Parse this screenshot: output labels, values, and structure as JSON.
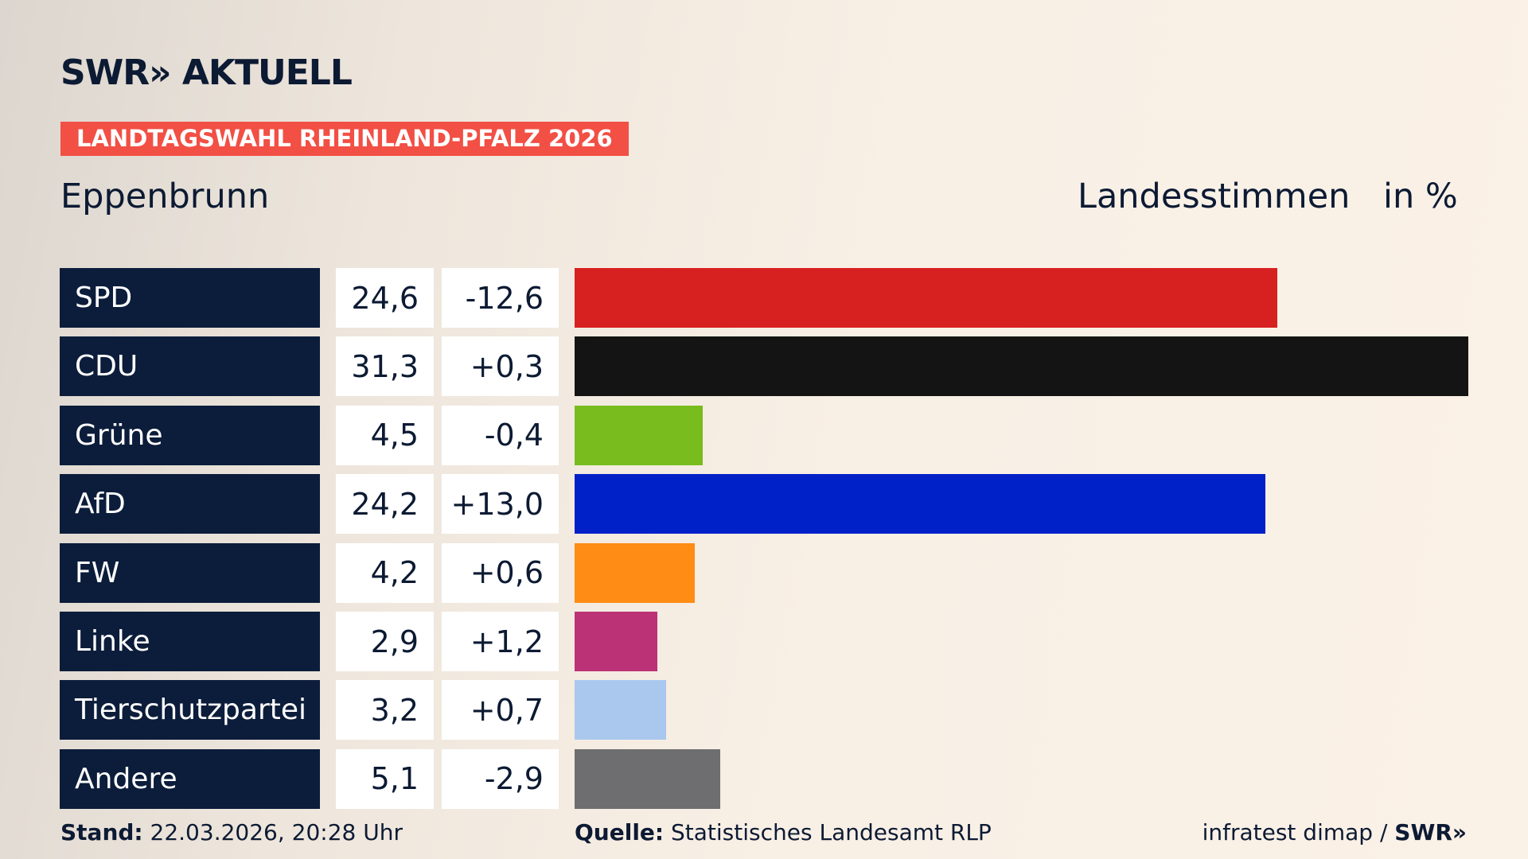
{
  "header": {
    "brand": "SWR» AKTUELL",
    "banner": "LANDTAGSWAHL RHEINLAND-PFALZ 2026",
    "location": "Eppenbrunn",
    "measure": "Landesstimmen",
    "unit": "in %"
  },
  "chart_data": {
    "type": "bar",
    "categories": [
      "SPD",
      "CDU",
      "Grüne",
      "AfD",
      "FW",
      "Linke",
      "Tierschutzpartei",
      "Andere"
    ],
    "values": [
      24.6,
      31.3,
      4.5,
      24.2,
      4.2,
      2.9,
      3.2,
      5.1
    ],
    "value_labels": [
      "24,6",
      "31,3",
      "4,5",
      "24,2",
      "4,2",
      "2,9",
      "3,2",
      "5,1"
    ],
    "changes": [
      "-12,6",
      "+0,3",
      "-0,4",
      "+13,0",
      "+0,6",
      "+1,2",
      "+0,7",
      "-2,9"
    ],
    "colors": [
      "#d72020",
      "#141414",
      "#78bc1e",
      "#0020c8",
      "#ff8c14",
      "#bb3276",
      "#aac8ee",
      "#6e6e70"
    ]
  },
  "footer": {
    "stand_label": "Stand:",
    "stand": "22.03.2026, 20:28 Uhr",
    "source_label": "Quelle:",
    "source": "Statistisches Landesamt RLP",
    "credit": "infratest dimap / ",
    "credit_brand": "SWR»"
  }
}
